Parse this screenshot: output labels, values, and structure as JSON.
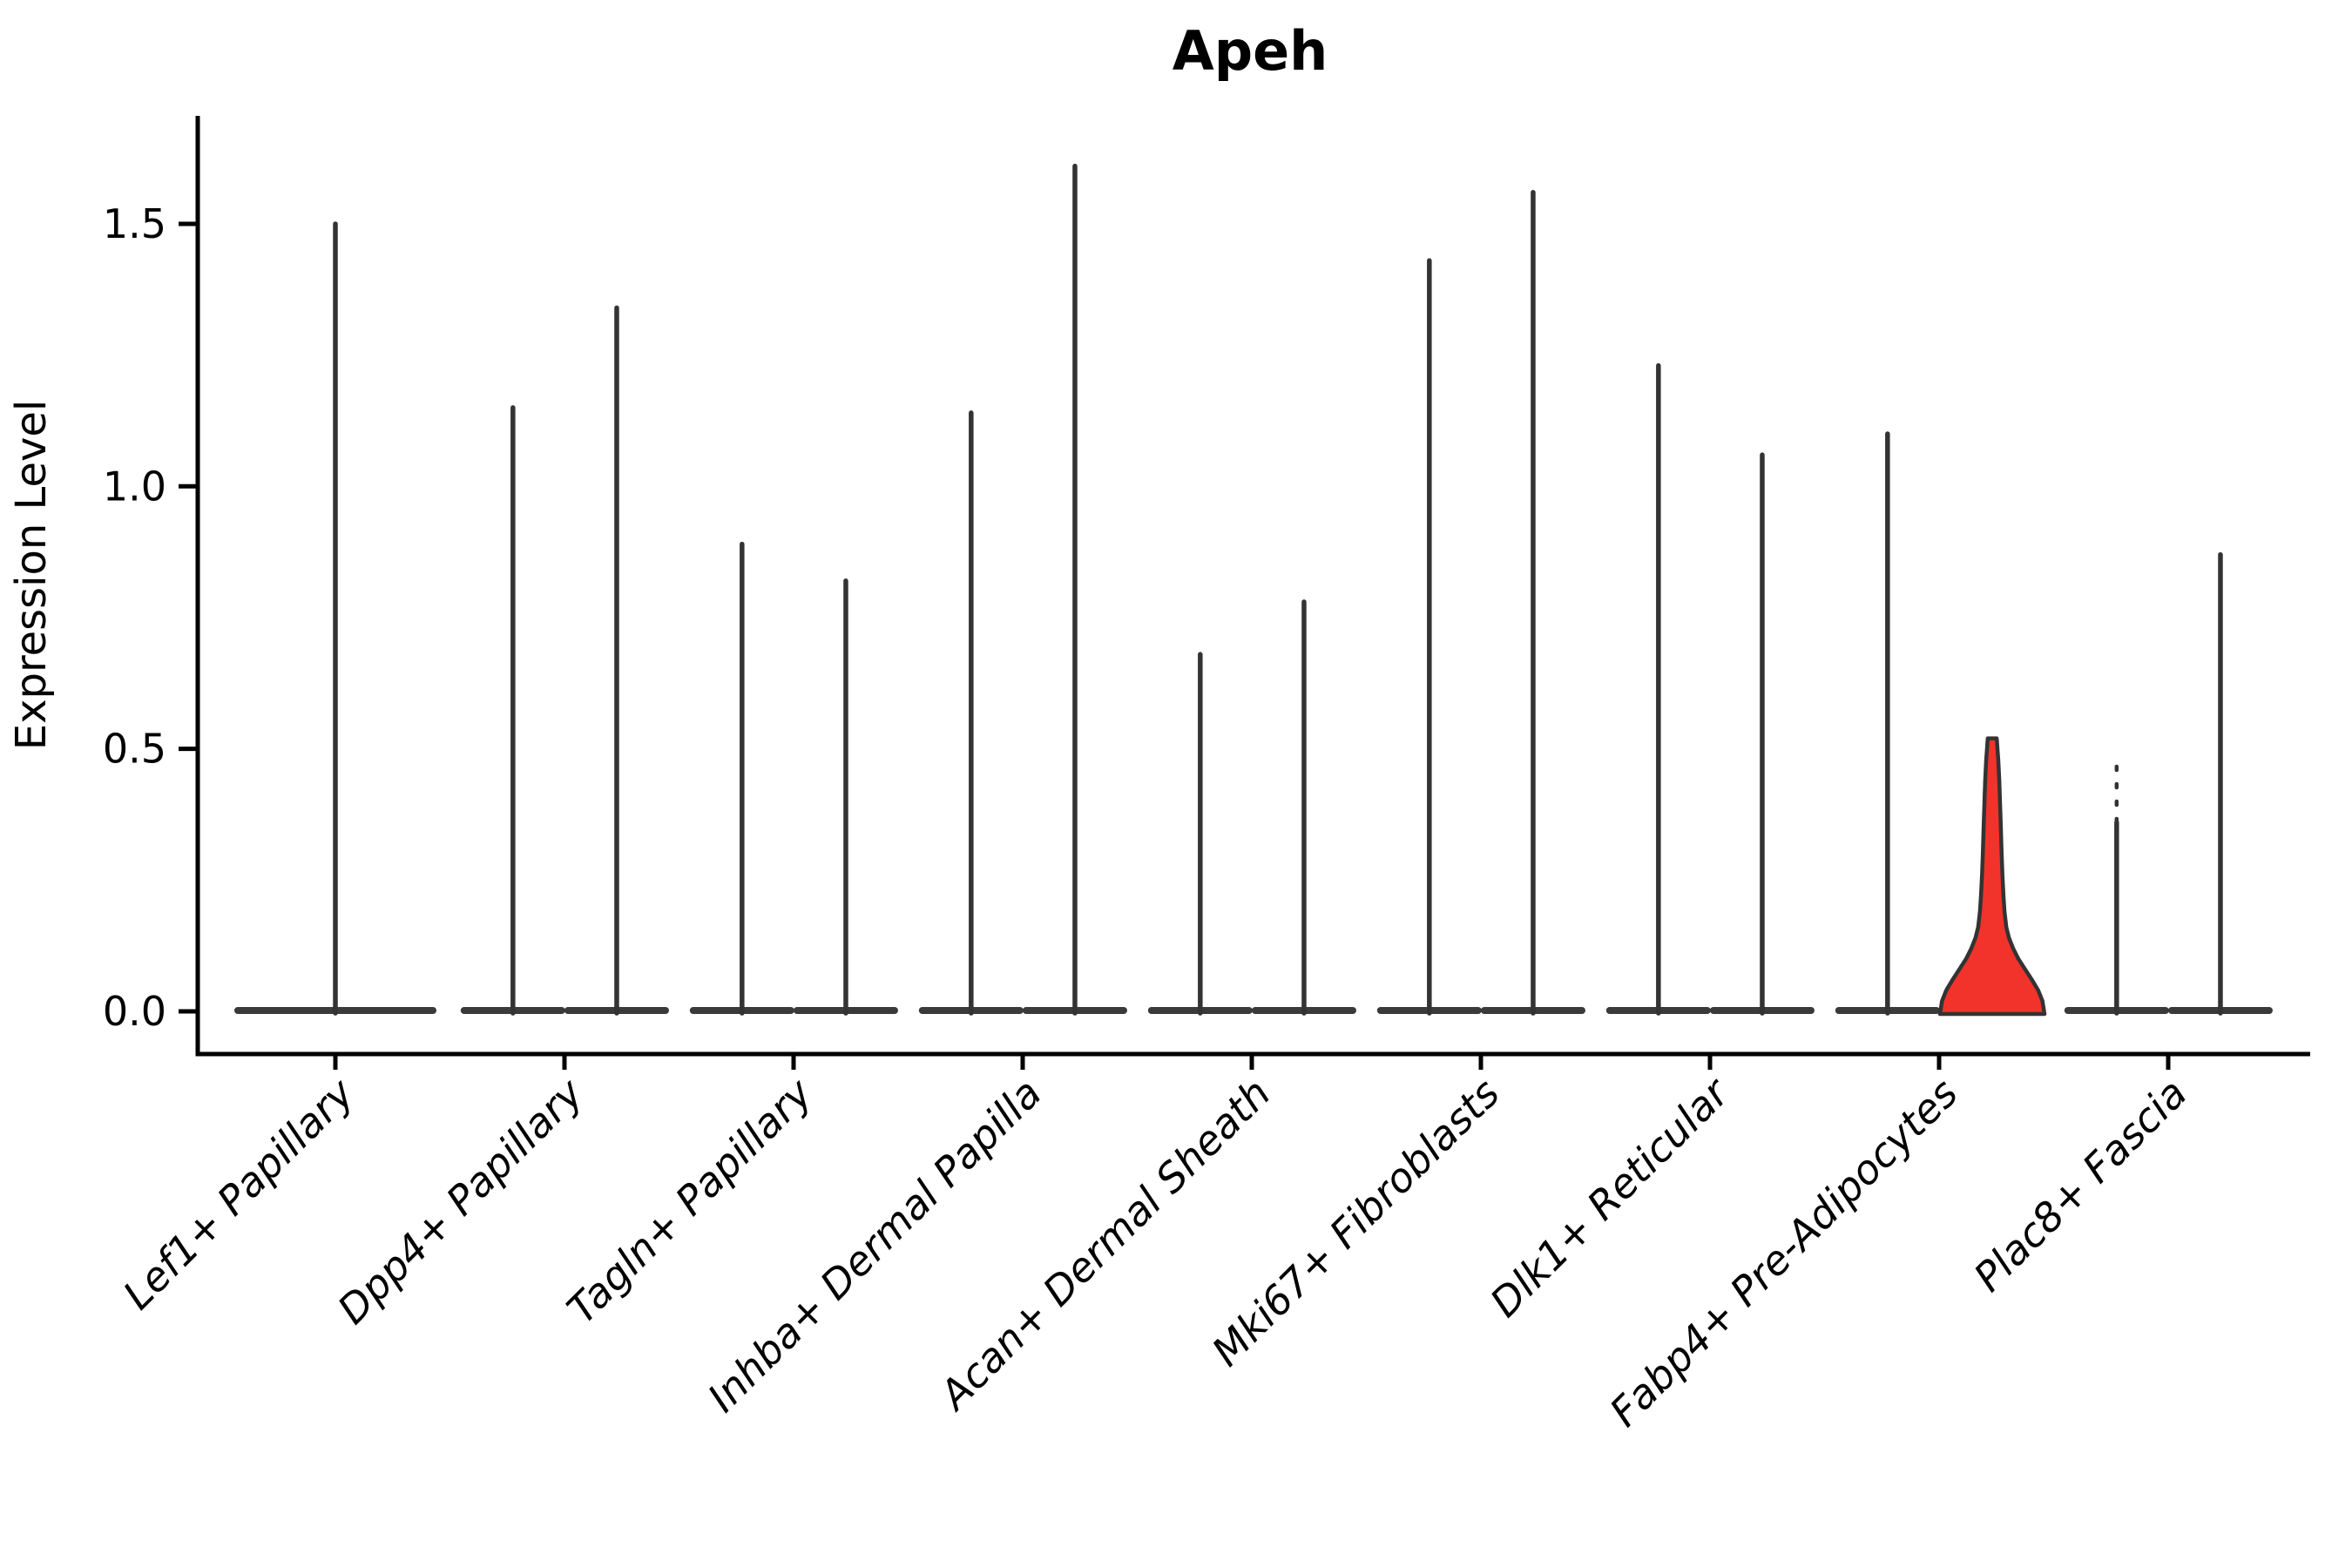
{
  "title": "Apeh",
  "axes": {
    "y_label": "Expression Level",
    "y_ticks": [
      "0.0",
      "0.5",
      "1.0",
      "1.5"
    ]
  },
  "chart_data": {
    "type": "violin",
    "title": "Apeh",
    "xlabel": "",
    "ylabel": "Expression Level",
    "ylim": [
      -0.08,
      1.7
    ],
    "y_tick_values": [
      0.0,
      0.5,
      1.0,
      1.5
    ],
    "y_tick_labels": [
      "0.0",
      "0.5",
      "1.0",
      "1.5"
    ],
    "x_tick_rotation_deg": 45,
    "grid": false,
    "legend_position": "none",
    "categories": [
      "Lef1+ Papillary",
      "Dpp4+ Papillary",
      "Tagln+ Papillary",
      "Inhba+ Dermal Papilla",
      "Acan+ Dermal Sheath",
      "Mki67+ Fibroblasts",
      "Dlk1+ Reticular",
      "Fabp4+ Pre-Adipocytes",
      "Plac8+ Fascia"
    ],
    "violins": [
      {
        "category": "Lef1+ Papillary",
        "spikes": [
          {
            "offset_frac": 0.0,
            "max": 1.5
          }
        ],
        "single_full_width": true
      },
      {
        "category": "Dpp4+ Papillary",
        "spikes": [
          {
            "offset_frac": -0.225,
            "max": 1.15
          },
          {
            "offset_frac": 0.228,
            "max": 1.34
          }
        ]
      },
      {
        "category": "Tagln+ Papillary",
        "spikes": [
          {
            "offset_frac": -0.225,
            "max": 0.89
          },
          {
            "offset_frac": 0.228,
            "max": 0.82
          }
        ]
      },
      {
        "category": "Inhba+ Dermal Papilla",
        "spikes": [
          {
            "offset_frac": -0.225,
            "max": 1.14
          },
          {
            "offset_frac": 0.228,
            "max": 1.61
          }
        ]
      },
      {
        "category": "Acan+ Dermal Sheath",
        "spikes": [
          {
            "offset_frac": -0.225,
            "max": 0.68
          },
          {
            "offset_frac": 0.228,
            "max": 0.78
          }
        ]
      },
      {
        "category": "Mki67+ Fibroblasts",
        "spikes": [
          {
            "offset_frac": -0.225,
            "max": 1.43
          },
          {
            "offset_frac": 0.228,
            "max": 1.56
          }
        ]
      },
      {
        "category": "Dlk1+ Reticular",
        "spikes": [
          {
            "offset_frac": -0.225,
            "max": 1.23
          },
          {
            "offset_frac": 0.228,
            "max": 1.06
          }
        ]
      },
      {
        "category": "Fabp4+ Pre-Adipocytes",
        "spikes": [
          {
            "offset_frac": -0.225,
            "max": 1.1
          }
        ]
      },
      {
        "category": "Plac8+ Fascia",
        "spikes": [
          {
            "offset_frac": -0.225,
            "max": 0.49,
            "dashed_from": 0.36
          },
          {
            "offset_frac": 0.228,
            "max": 0.87
          }
        ]
      }
    ],
    "highlight_violin": {
      "category_index": 7,
      "category": "Fabp4+ Pre-Adipocytes",
      "offset_frac": 0.232,
      "max": 0.52,
      "fill": "#f2332b",
      "profile": [
        [
          0.0,
          1.0
        ],
        [
          0.02,
          0.96
        ],
        [
          0.04,
          0.88
        ],
        [
          0.06,
          0.76
        ],
        [
          0.08,
          0.63
        ],
        [
          0.1,
          0.5
        ],
        [
          0.12,
          0.4
        ],
        [
          0.14,
          0.32
        ],
        [
          0.16,
          0.27
        ],
        [
          0.19,
          0.235
        ],
        [
          0.22,
          0.215
        ],
        [
          0.26,
          0.195
        ],
        [
          0.3,
          0.18
        ],
        [
          0.35,
          0.165
        ],
        [
          0.4,
          0.148
        ],
        [
          0.44,
          0.135
        ],
        [
          0.48,
          0.115
        ],
        [
          0.5,
          0.1
        ],
        [
          0.515,
          0.09
        ],
        [
          0.52,
          0.085
        ]
      ]
    },
    "colors": {
      "violin_line": "#333333",
      "violin_base": "#3a3a3a",
      "highlight_fill": "#f2332b",
      "axis": "#000000",
      "text": "#000000"
    }
  }
}
